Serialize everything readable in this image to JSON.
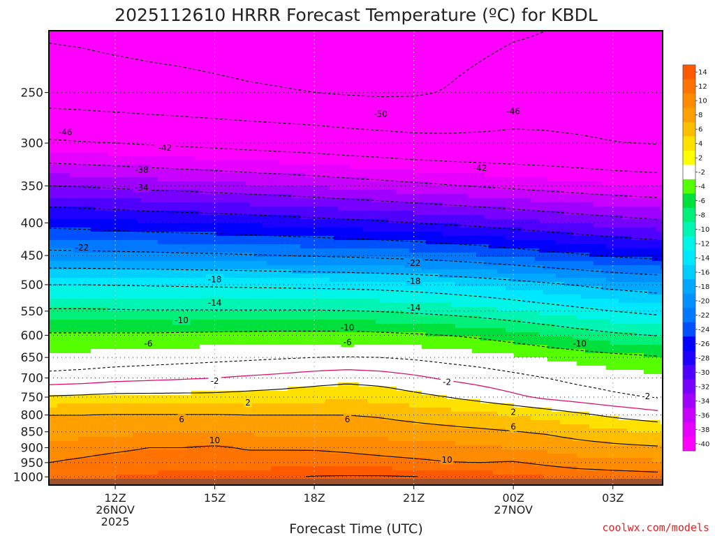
{
  "chart_data": {
    "type": "heatmap",
    "title": "2025112610 HRRR Forecast Temperature (ºC) for KBDL",
    "xlabel": "Forecast Time (UTC)",
    "ylabel": "",
    "credit": "coolwx.com/models",
    "y_scale": "log-pressure",
    "y_unit": "hPa",
    "ylim": [
      1030,
      200
    ],
    "y_ticks": [
      250,
      300,
      350,
      400,
      450,
      500,
      550,
      600,
      650,
      700,
      750,
      800,
      850,
      900,
      950,
      1000
    ],
    "xlim_hours": [
      10,
      28.5
    ],
    "x_ticks": [
      {
        "hour": 12,
        "lines": [
          "12Z",
          "26NOV",
          "2025"
        ]
      },
      {
        "hour": 15,
        "lines": [
          "15Z"
        ]
      },
      {
        "hour": 18,
        "lines": [
          "18Z"
        ]
      },
      {
        "hour": 21,
        "lines": [
          "21Z"
        ]
      },
      {
        "hour": 24,
        "lines": [
          "00Z",
          "27NOV"
        ]
      },
      {
        "hour": 27,
        "lines": [
          "03Z"
        ]
      }
    ],
    "grid": true,
    "colorbar": {
      "position": "right",
      "levels": [
        14,
        12,
        10,
        8,
        6,
        4,
        2,
        -2,
        -4,
        -6,
        -8,
        -10,
        -12,
        -14,
        -16,
        -18,
        -20,
        -22,
        -24,
        -26,
        -28,
        -30,
        -32,
        -34,
        -36,
        -38,
        -40
      ],
      "colors": [
        "#ff5a00",
        "#ff7300",
        "#ff8c00",
        "#ffa000",
        "#ffbf00",
        "#ffe100",
        "#ffff00",
        "#ffffff",
        "#55ff00",
        "#00e03c",
        "#00f07a",
        "#00f5b4",
        "#00f5e6",
        "#00e8ff",
        "#00cfff",
        "#00a8ff",
        "#0090ff",
        "#0078ff",
        "#0050ff",
        "#0000ff",
        "#1e00ff",
        "#5000ff",
        "#7800ff",
        "#a000ff",
        "#c800ff",
        "#e600ff",
        "#ff00ff"
      ]
    },
    "hours": [
      10,
      11,
      12,
      13,
      14,
      15,
      16,
      17,
      18,
      19,
      20,
      21,
      22,
      23,
      24,
      25,
      26,
      27,
      28.5
    ],
    "levels_hpa": [
      1000,
      950,
      900,
      850,
      800,
      750,
      700,
      650,
      600,
      550,
      500,
      450,
      400,
      350,
      300,
      250,
      200
    ],
    "temperature_c": [
      [
        11.5,
        11.7,
        12.0,
        12.2,
        12.6,
        12.9,
        13.3,
        13.6,
        14.2,
        14.3,
        14.3,
        14.1,
        13.6,
        13.0,
        12.6,
        12.0,
        11.6,
        11.2,
        10.8
      ],
      [
        10.0,
        10.5,
        11.0,
        11.2,
        11.4,
        11.0,
        11.0,
        11.0,
        10.9,
        10.8,
        10.6,
        10.4,
        10.1,
        10.0,
        10.2,
        9.5,
        8.8,
        8.6,
        8.3
      ],
      [
        8.6,
        9.0,
        9.5,
        10.0,
        10.0,
        10.3,
        9.8,
        9.8,
        9.8,
        9.6,
        9.3,
        9.0,
        8.7,
        8.3,
        7.9,
        7.5,
        7.0,
        6.6,
        6.2
      ],
      [
        7.0,
        7.2,
        7.5,
        7.7,
        7.8,
        7.8,
        7.6,
        7.5,
        7.4,
        7.2,
        7.0,
        6.8,
        6.6,
        6.4,
        6.1,
        5.7,
        5.0,
        4.4,
        3.8
      ],
      [
        6.0,
        6.0,
        6.1,
        6.1,
        6.1,
        6.1,
        6.0,
        6.0,
        6.0,
        6.0,
        5.8,
        5.4,
        5.0,
        4.5,
        3.9,
        3.2,
        2.4,
        1.6,
        0.6
      ],
      [
        2.2,
        2.4,
        2.6,
        2.6,
        2.6,
        2.6,
        2.8,
        3.0,
        3.3,
        3.6,
        3.3,
        2.6,
        2.0,
        1.2,
        0.4,
        -0.4,
        -1.0,
        -1.6,
        -2.2
      ],
      [
        -1.2,
        -1.0,
        -0.6,
        -0.4,
        -0.2,
        0.0,
        0.3,
        0.6,
        1.0,
        1.3,
        1.0,
        0.4,
        -0.3,
        -0.8,
        -1.4,
        -2.0,
        -2.6,
        -3.0,
        -3.6
      ],
      [
        -3.6,
        -3.4,
        -3.2,
        -3.0,
        -2.8,
        -2.6,
        -2.4,
        -2.2,
        -2.0,
        -1.9,
        -2.0,
        -2.3,
        -2.7,
        -3.1,
        -3.6,
        -4.2,
        -4.7,
        -5.2,
        -5.8
      ],
      [
        -5.6,
        -5.6,
        -5.6,
        -5.6,
        -5.5,
        -5.4,
        -5.3,
        -5.2,
        -5.2,
        -5.2,
        -5.4,
        -5.7,
        -6.0,
        -6.5,
        -7.2,
        -8.0,
        -8.8,
        -9.5,
        -10.2
      ],
      [
        -9.6,
        -9.6,
        -9.7,
        -9.8,
        -9.8,
        -9.8,
        -9.8,
        -9.8,
        -9.8,
        -9.9,
        -10.1,
        -10.4,
        -10.8,
        -11.3,
        -11.9,
        -12.6,
        -13.3,
        -14.0,
        -14.8
      ],
      [
        -14.0,
        -14.0,
        -14.1,
        -14.2,
        -14.3,
        -14.4,
        -14.5,
        -14.6,
        -14.7,
        -14.8,
        -15.0,
        -15.3,
        -15.7,
        -16.2,
        -16.8,
        -17.5,
        -18.2,
        -18.9,
        -19.6
      ],
      [
        -21.0,
        -21.1,
        -21.2,
        -21.3,
        -21.5,
        -21.6,
        -21.8,
        -22.0,
        -22.2,
        -22.4,
        -22.7,
        -23.0,
        -23.4,
        -23.9,
        -24.5,
        -25.1,
        -25.7,
        -26.3,
        -27.0
      ],
      [
        -27.0,
        -27.2,
        -27.5,
        -27.8,
        -28.0,
        -28.2,
        -28.4,
        -28.7,
        -29.0,
        -29.3,
        -29.6,
        -30.0,
        -30.4,
        -30.8,
        -31.3,
        -31.8,
        -32.3,
        -32.8,
        -33.4
      ],
      [
        -34.0,
        -34.2,
        -34.5,
        -34.8,
        -35.0,
        -35.3,
        -35.6,
        -35.9,
        -36.2,
        -36.6,
        -37.0,
        -37.4,
        -37.8,
        -38.2,
        -38.6,
        -39.0,
        -39.4,
        -39.8,
        -40.2
      ],
      [
        -41.5,
        -41.8,
        -42.0,
        -42.3,
        -42.6,
        -42.9,
        -43.2,
        -43.5,
        -43.8,
        -44.2,
        -44.5,
        -44.9,
        -45.1,
        -45.2,
        -45.3,
        -45.4,
        -45.6,
        -45.9,
        -46.2
      ],
      [
        -48.0,
        -48.2,
        -48.5,
        -48.8,
        -49.0,
        -49.3,
        -49.6,
        -49.8,
        -50.0,
        -50.3,
        -50.5,
        -50.4,
        -49.8,
        -48.8,
        -47.8,
        -47.8,
        -48.0,
        -48.2,
        -48.5
      ],
      [
        -50.5,
        -50.7,
        -51.0,
        -51.2,
        -51.4,
        -51.6,
        -51.8,
        -52.0,
        -52.1,
        -52.2,
        -52.3,
        -52.2,
        -51.8,
        -51.2,
        -50.5,
        -50.0,
        -49.6,
        -49.3,
        -49.0
      ]
    ],
    "contour_labels": [
      {
        "value": -46,
        "hour": 10.5,
        "hpa": 288
      },
      {
        "value": -42,
        "hour": 13.5,
        "hpa": 305
      },
      {
        "value": -38,
        "hour": 12.8,
        "hpa": 330
      },
      {
        "value": -34,
        "hour": 12.8,
        "hpa": 352
      },
      {
        "value": -50,
        "hour": 20,
        "hpa": 270
      },
      {
        "value": -46,
        "hour": 24,
        "hpa": 267
      },
      {
        "value": -42,
        "hour": 23,
        "hpa": 328
      },
      {
        "value": -22,
        "hour": 11,
        "hpa": 437
      },
      {
        "value": -22,
        "hour": 21,
        "hpa": 462
      },
      {
        "value": -18,
        "hour": 15,
        "hpa": 490
      },
      {
        "value": -18,
        "hour": 21,
        "hpa": 493
      },
      {
        "value": -14,
        "hour": 15,
        "hpa": 533
      },
      {
        "value": -14,
        "hour": 21,
        "hpa": 543
      },
      {
        "value": -10,
        "hour": 14,
        "hpa": 568
      },
      {
        "value": -10,
        "hour": 19,
        "hpa": 583
      },
      {
        "value": -10,
        "hour": 26,
        "hpa": 618
      },
      {
        "value": -6,
        "hour": 13,
        "hpa": 618
      },
      {
        "value": -6,
        "hour": 19,
        "hpa": 615
      },
      {
        "value": -2,
        "hour": 15,
        "hpa": 707
      },
      {
        "value": -2,
        "hour": 22,
        "hpa": 710
      },
      {
        "value": -2,
        "hour": 28,
        "hpa": 747
      },
      {
        "value": 2,
        "hour": 16,
        "hpa": 764
      },
      {
        "value": 2,
        "hour": 24,
        "hpa": 791
      },
      {
        "value": 6,
        "hour": 14,
        "hpa": 812
      },
      {
        "value": 6,
        "hour": 19,
        "hpa": 812
      },
      {
        "value": 6,
        "hour": 24,
        "hpa": 834
      },
      {
        "value": 10,
        "hour": 15,
        "hpa": 876
      },
      {
        "value": 10,
        "hour": 22,
        "hpa": 940
      }
    ]
  }
}
